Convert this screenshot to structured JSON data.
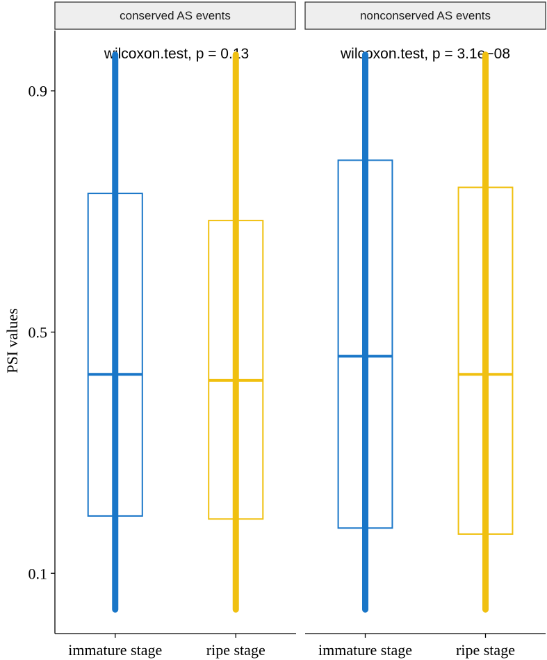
{
  "chart_data": {
    "type": "boxplot",
    "ylabel": "PSI values",
    "ylim": [
      -0.0,
      1.0
    ],
    "yticks": [
      0.1,
      0.5,
      0.9
    ],
    "ytick_labels": [
      "0.1",
      "0.5",
      "0.9"
    ],
    "categories": [
      "immature stage",
      "ripe stage"
    ],
    "colors": {
      "immature stage": "#1976c8",
      "ripe stage": "#f0c010"
    },
    "grid": false,
    "legend": "none",
    "panels": [
      {
        "strip": "conserved AS events",
        "annotation": "wilcoxon.test, p = 0.13",
        "boxes": [
          {
            "category": "immature stage",
            "min": 0.04,
            "q1": 0.195,
            "median": 0.43,
            "q3": 0.73,
            "max": 0.96
          },
          {
            "category": "ripe stage",
            "min": 0.04,
            "q1": 0.19,
            "median": 0.42,
            "q3": 0.685,
            "max": 0.96
          }
        ]
      },
      {
        "strip": "nonconserved AS events",
        "annotation": "wilcoxon.test, p = 3.1e−08",
        "boxes": [
          {
            "category": "immature stage",
            "min": 0.04,
            "q1": 0.175,
            "median": 0.46,
            "q3": 0.785,
            "max": 0.96
          },
          {
            "category": "ripe stage",
            "min": 0.04,
            "q1": 0.165,
            "median": 0.43,
            "q3": 0.74,
            "max": 0.96
          }
        ]
      }
    ]
  }
}
